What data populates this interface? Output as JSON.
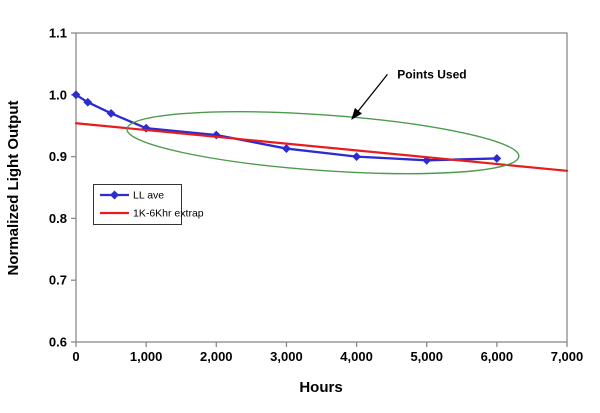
{
  "chart_data": {
    "type": "line",
    "title": "",
    "x_axis": {
      "label": "Hours",
      "min": 0,
      "max": 7000,
      "tick_values": [
        0,
        1000,
        2000,
        3000,
        4000,
        5000,
        6000,
        7000
      ],
      "tick_labels": [
        "0",
        "1,000",
        "2,000",
        "3,000",
        "4,000",
        "5,000",
        "6,000",
        "7,000"
      ]
    },
    "y_axis": {
      "label": "Normalized Light Output",
      "min": 0.6,
      "max": 1.1,
      "tick_values": [
        0.6,
        0.7,
        0.8,
        0.9,
        1.0,
        1.1
      ],
      "tick_labels": [
        "0.6",
        "0.7",
        "0.8",
        "0.9",
        "1.0",
        "1.1"
      ]
    },
    "grid": "off",
    "legend_position": "inside-left",
    "series": [
      {
        "name": "LL ave",
        "color": "#2d2dcf",
        "marker": "diamond",
        "line_width": 2.3,
        "x": [
          0,
          168,
          500,
          1000,
          2000,
          3000,
          4000,
          5000,
          6000
        ],
        "y": [
          1.0,
          0.988,
          0.97,
          0.946,
          0.935,
          0.913,
          0.9,
          0.894,
          0.897
        ]
      },
      {
        "name": "1K-6Khr extrap",
        "color": "#e81c1c",
        "marker": "none",
        "line_width": 2.2,
        "x": [
          0,
          7000
        ],
        "y": [
          0.954,
          0.877
        ]
      }
    ],
    "annotation": {
      "label": "Points Used",
      "label_x": 4580,
      "label_y": 1.026,
      "arrow": {
        "x1": 4440,
        "y1": 1.033,
        "x2": 3935,
        "y2": 0.961,
        "color": "#000000"
      },
      "ellipse": {
        "cx": 3520,
        "cy": 0.9225,
        "rx_hours": 2800,
        "ry_units": 0.045,
        "rotation_deg": 4,
        "color": "#4c9b4c"
      }
    }
  }
}
